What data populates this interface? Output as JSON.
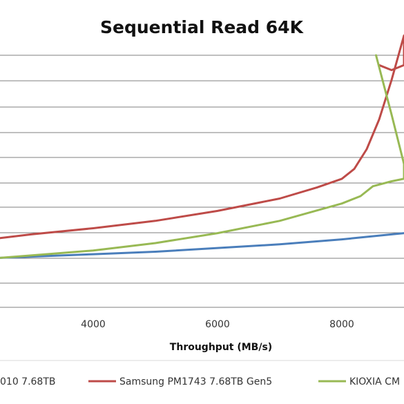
{
  "chart_data": {
    "type": "line",
    "title": "Sequential Read 64K",
    "xlabel": "Throughput (MB/s)",
    "ylabel": "",
    "x_ticks": [
      4000,
      6000,
      8000
    ],
    "x_tick_labels": [
      "4000",
      "6000",
      "8000"
    ],
    "grid": "horizontal",
    "legend_position": "bottom",
    "series": [
      {
        "name": "010 7.68TB",
        "color": "#4a7ebb",
        "x": [
          2500,
          3000,
          4000,
          5000,
          6000,
          7000,
          8000,
          8800,
          9000
        ],
        "y": [
          2.0,
          2.05,
          2.15,
          2.25,
          2.4,
          2.55,
          2.75,
          2.95,
          3.0
        ]
      },
      {
        "name": "Samsung PM1743 7.68TB Gen5",
        "color": "#be4b48",
        "x": [
          2500,
          3000,
          4000,
          5000,
          6000,
          7000,
          7600,
          8000,
          8200,
          8400,
          8600,
          8800,
          9000,
          9000,
          8800,
          8600
        ],
        "y": [
          2.8,
          2.95,
          3.2,
          3.5,
          3.9,
          4.4,
          4.85,
          5.2,
          5.6,
          6.4,
          7.6,
          9.2,
          11.0,
          9.8,
          9.6,
          9.8
        ]
      },
      {
        "name": "KIOXIA CM",
        "color": "#98b954",
        "x": [
          2500,
          3000,
          4000,
          5000,
          6000,
          7000,
          8000,
          8300,
          8500,
          8800,
          9000,
          9000,
          8800,
          8550
        ],
        "y": [
          2.0,
          2.1,
          2.3,
          2.6,
          3.0,
          3.5,
          4.2,
          4.5,
          4.9,
          5.1,
          5.2,
          5.8,
          7.8,
          10.2
        ]
      }
    ]
  }
}
